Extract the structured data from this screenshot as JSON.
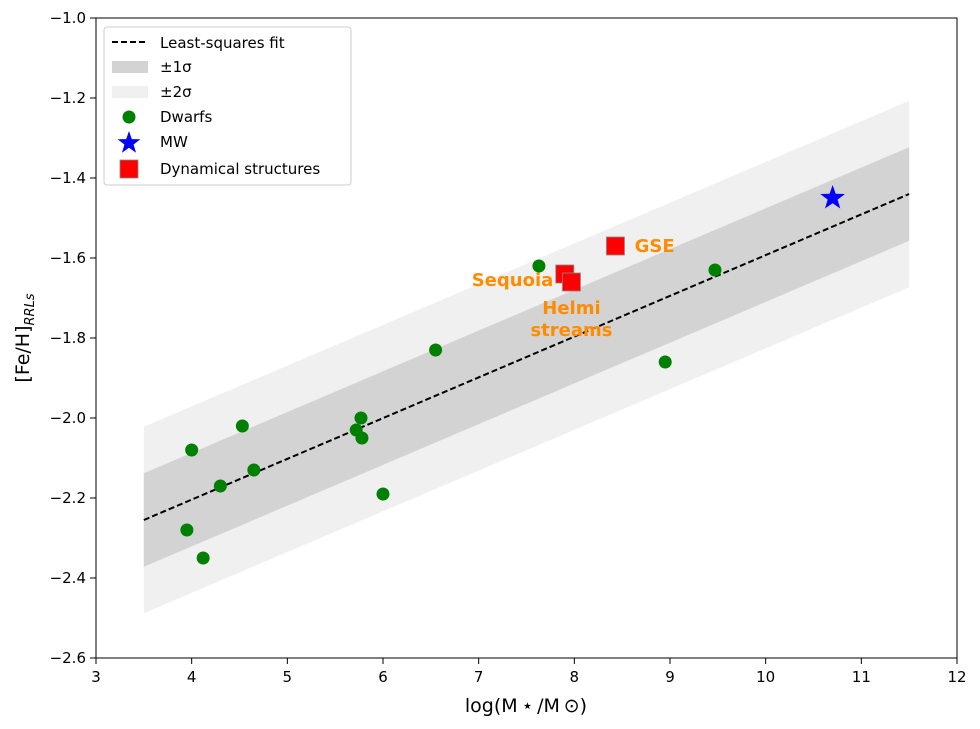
{
  "chart_data": {
    "type": "scatter",
    "title": "",
    "xlabel": "log(M ⋆ /M ⊙)",
    "ylabel": "[Fe/H]",
    "ylabel_sub": "RRLs",
    "xlim": [
      3,
      12
    ],
    "ylim": [
      -2.6,
      -1.0
    ],
    "x_ticks": [
      3,
      4,
      5,
      6,
      7,
      8,
      9,
      10,
      11,
      12
    ],
    "x_tick_labels": [
      "3",
      "4",
      "5",
      "6",
      "7",
      "8",
      "9",
      "10",
      "11",
      "12"
    ],
    "y_ticks": [
      -2.6,
      -2.4,
      -2.2,
      -2.0,
      -1.8,
      -1.6,
      -1.4,
      -1.2,
      -1.0
    ],
    "y_tick_labels": [
      "−2.6",
      "−2.4",
      "−2.2",
      "−2.0",
      "−1.8",
      "−1.6",
      "−1.4",
      "−1.2",
      "−1.0"
    ],
    "grid": false,
    "legend_position": "top-left",
    "fit": {
      "label": "Least-squares fit",
      "x": [
        3.5,
        11.5
      ],
      "y": [
        -2.255,
        -1.44
      ],
      "sigma1": 0.117,
      "sigma2": 0.233,
      "band1_label": "±1σ",
      "band2_label": "±2σ"
    },
    "series": [
      {
        "name": "Dwarfs",
        "marker": "circle",
        "color": "#008000",
        "points": [
          [
            3.95,
            -2.28
          ],
          [
            4.0,
            -2.08
          ],
          [
            4.12,
            -2.35
          ],
          [
            4.3,
            -2.17
          ],
          [
            4.53,
            -2.02
          ],
          [
            4.65,
            -2.13
          ],
          [
            5.72,
            -2.03
          ],
          [
            5.77,
            -2.0
          ],
          [
            5.78,
            -2.05
          ],
          [
            6.0,
            -2.19
          ],
          [
            6.55,
            -1.83
          ],
          [
            7.63,
            -1.62
          ],
          [
            8.95,
            -1.86
          ],
          [
            9.47,
            -1.63
          ]
        ]
      },
      {
        "name": "MW",
        "marker": "star",
        "color": "#0000FF",
        "points": [
          [
            10.7,
            -1.45
          ]
        ]
      },
      {
        "name": "Dynamical structures",
        "marker": "square",
        "color": "#FF0000",
        "points": [
          [
            8.43,
            -1.57
          ],
          [
            7.9,
            -1.64
          ],
          [
            7.97,
            -1.66
          ]
        ]
      }
    ],
    "annotations": [
      {
        "lines": [
          "GSE"
        ],
        "x": 8.63,
        "y": -1.57,
        "anchor": "start",
        "color": "#FF8C00"
      },
      {
        "lines": [
          "Sequoia"
        ],
        "x": 7.78,
        "y": -1.655,
        "anchor": "end",
        "color": "#FF8C00"
      },
      {
        "lines": [
          "Helmi",
          "streams"
        ],
        "x": 7.97,
        "y": -1.725,
        "anchor": "middle",
        "color": "#FF8C00"
      }
    ]
  }
}
